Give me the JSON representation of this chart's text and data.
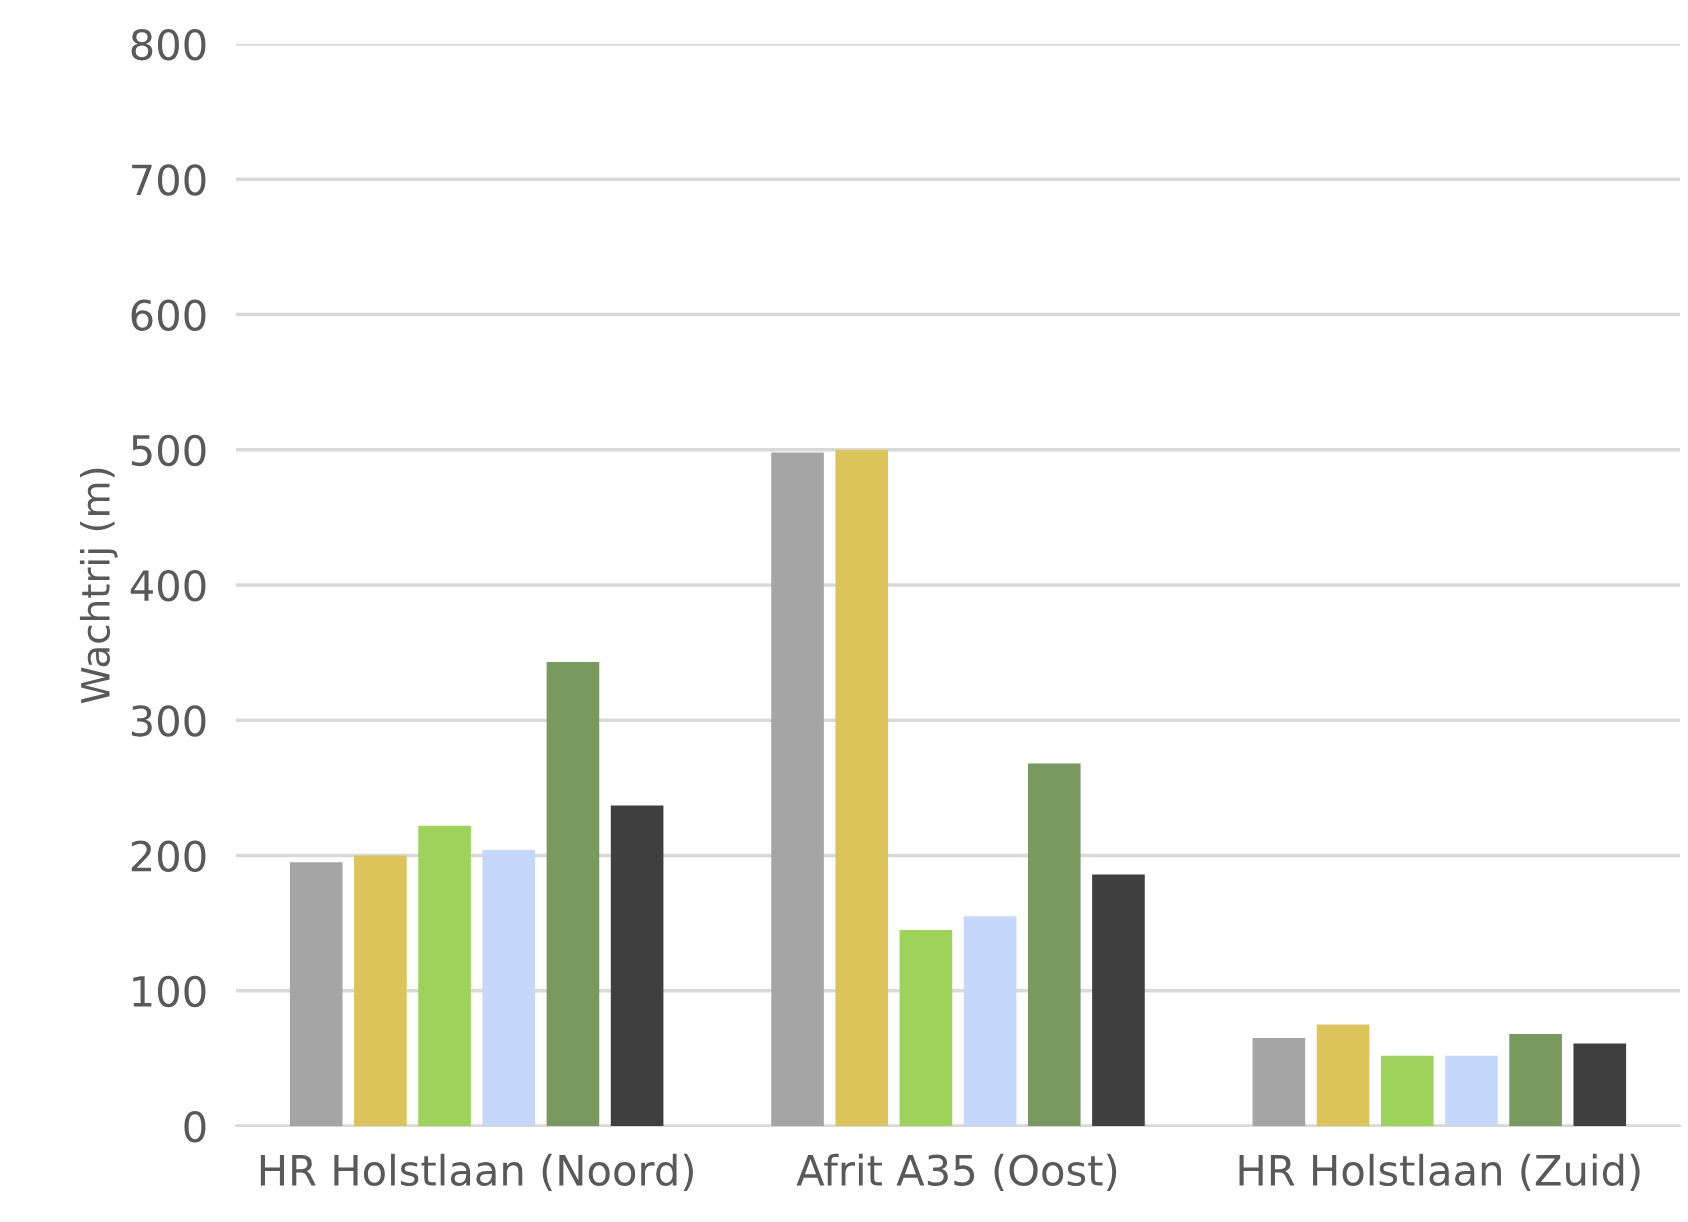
{
  "chart_data": {
    "type": "bar",
    "ylabel": "Wachtrij (m)",
    "categories": [
      "HR Holstlaan (Noord)",
      "Afrit A35 (Oost)",
      "HR Holstlaan (Zuid)"
    ],
    "series": [
      {
        "color": "#a5a5a5",
        "values": [
          195,
          498,
          65
        ]
      },
      {
        "color": "#dcc35a",
        "values": [
          200,
          500,
          75
        ]
      },
      {
        "color": "#9dd35a",
        "values": [
          222,
          145,
          52
        ]
      },
      {
        "color": "#c5d7fb",
        "values": [
          204,
          155,
          52
        ]
      },
      {
        "color": "#789a5f",
        "values": [
          343,
          268,
          68
        ]
      },
      {
        "color": "#3f3f3f",
        "values": [
          237,
          186,
          61
        ]
      }
    ],
    "ylim": [
      0,
      800
    ],
    "yticks": [
      0,
      100,
      200,
      300,
      400,
      500,
      600,
      700,
      800
    ],
    "grid": "y",
    "legend": false
  }
}
